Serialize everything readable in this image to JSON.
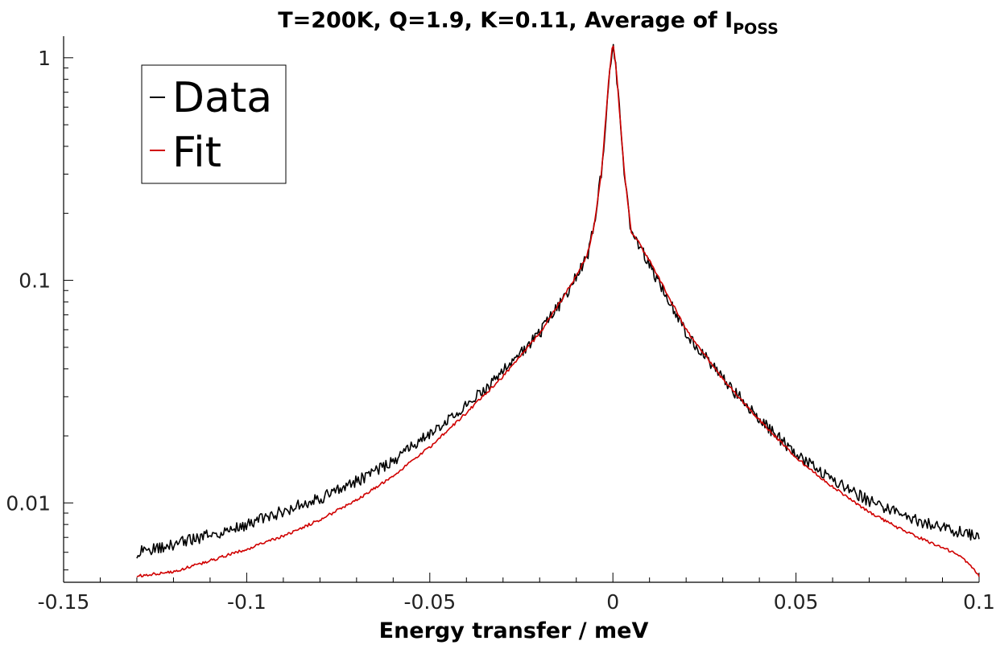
{
  "chart_data": {
    "type": "line",
    "title_main": "T=200K, Q=1.9, K=0.11, Average of I",
    "title_sub": "POSS",
    "xlabel": "Energy transfer / meV",
    "ylabel": "",
    "xlim": [
      -0.15,
      0.1
    ],
    "ylim": [
      0.0044,
      1.25
    ],
    "yscale": "log",
    "grid": false,
    "legend_position": "top-left",
    "x_ticks": [
      -0.15,
      -0.1,
      -0.05,
      0,
      0.05,
      0.1
    ],
    "x_tick_labels": [
      "-0.15",
      "-0.1",
      "-0.05",
      "0",
      "0.05",
      "0.1"
    ],
    "y_ticks": [
      0.01,
      0.1,
      1
    ],
    "y_tick_labels": [
      "0.01",
      "0.1",
      "1"
    ],
    "series": [
      {
        "name": "Data",
        "color": "#000000",
        "x": [
          -0.13,
          -0.12,
          -0.11,
          -0.1,
          -0.09,
          -0.08,
          -0.07,
          -0.06,
          -0.05,
          -0.04,
          -0.03,
          -0.02,
          -0.015,
          -0.01,
          -0.007,
          -0.005,
          -0.003,
          -0.001,
          0,
          0.001,
          0.003,
          0.005,
          0.007,
          0.01,
          0.015,
          0.02,
          0.03,
          0.04,
          0.05,
          0.06,
          0.07,
          0.08,
          0.09,
          0.1
        ],
        "y": [
          0.006,
          0.0065,
          0.0072,
          0.008,
          0.0092,
          0.0105,
          0.0125,
          0.0155,
          0.0205,
          0.0275,
          0.039,
          0.058,
          0.076,
          0.104,
          0.128,
          0.18,
          0.32,
          0.85,
          1.18,
          0.85,
          0.32,
          0.16,
          0.145,
          0.118,
          0.082,
          0.058,
          0.036,
          0.024,
          0.0165,
          0.0128,
          0.0102,
          0.0087,
          0.0077,
          0.0071
        ]
      },
      {
        "name": "Fit",
        "color": "#d00000",
        "x": [
          -0.13,
          -0.12,
          -0.11,
          -0.1,
          -0.09,
          -0.08,
          -0.07,
          -0.06,
          -0.05,
          -0.04,
          -0.03,
          -0.02,
          -0.015,
          -0.01,
          -0.007,
          -0.005,
          -0.003,
          -0.001,
          0,
          0.001,
          0.003,
          0.005,
          0.007,
          0.01,
          0.015,
          0.02,
          0.03,
          0.04,
          0.05,
          0.06,
          0.07,
          0.08,
          0.09,
          0.095,
          0.1
        ],
        "y": [
          0.0047,
          0.0049,
          0.0055,
          0.0062,
          0.0071,
          0.0084,
          0.0103,
          0.0132,
          0.0178,
          0.0254,
          0.037,
          0.058,
          0.077,
          0.105,
          0.13,
          0.18,
          0.32,
          0.85,
          1.18,
          0.85,
          0.32,
          0.165,
          0.148,
          0.122,
          0.086,
          0.06,
          0.036,
          0.0235,
          0.016,
          0.0118,
          0.0091,
          0.0074,
          0.0063,
          0.0058,
          0.0047
        ]
      }
    ]
  }
}
